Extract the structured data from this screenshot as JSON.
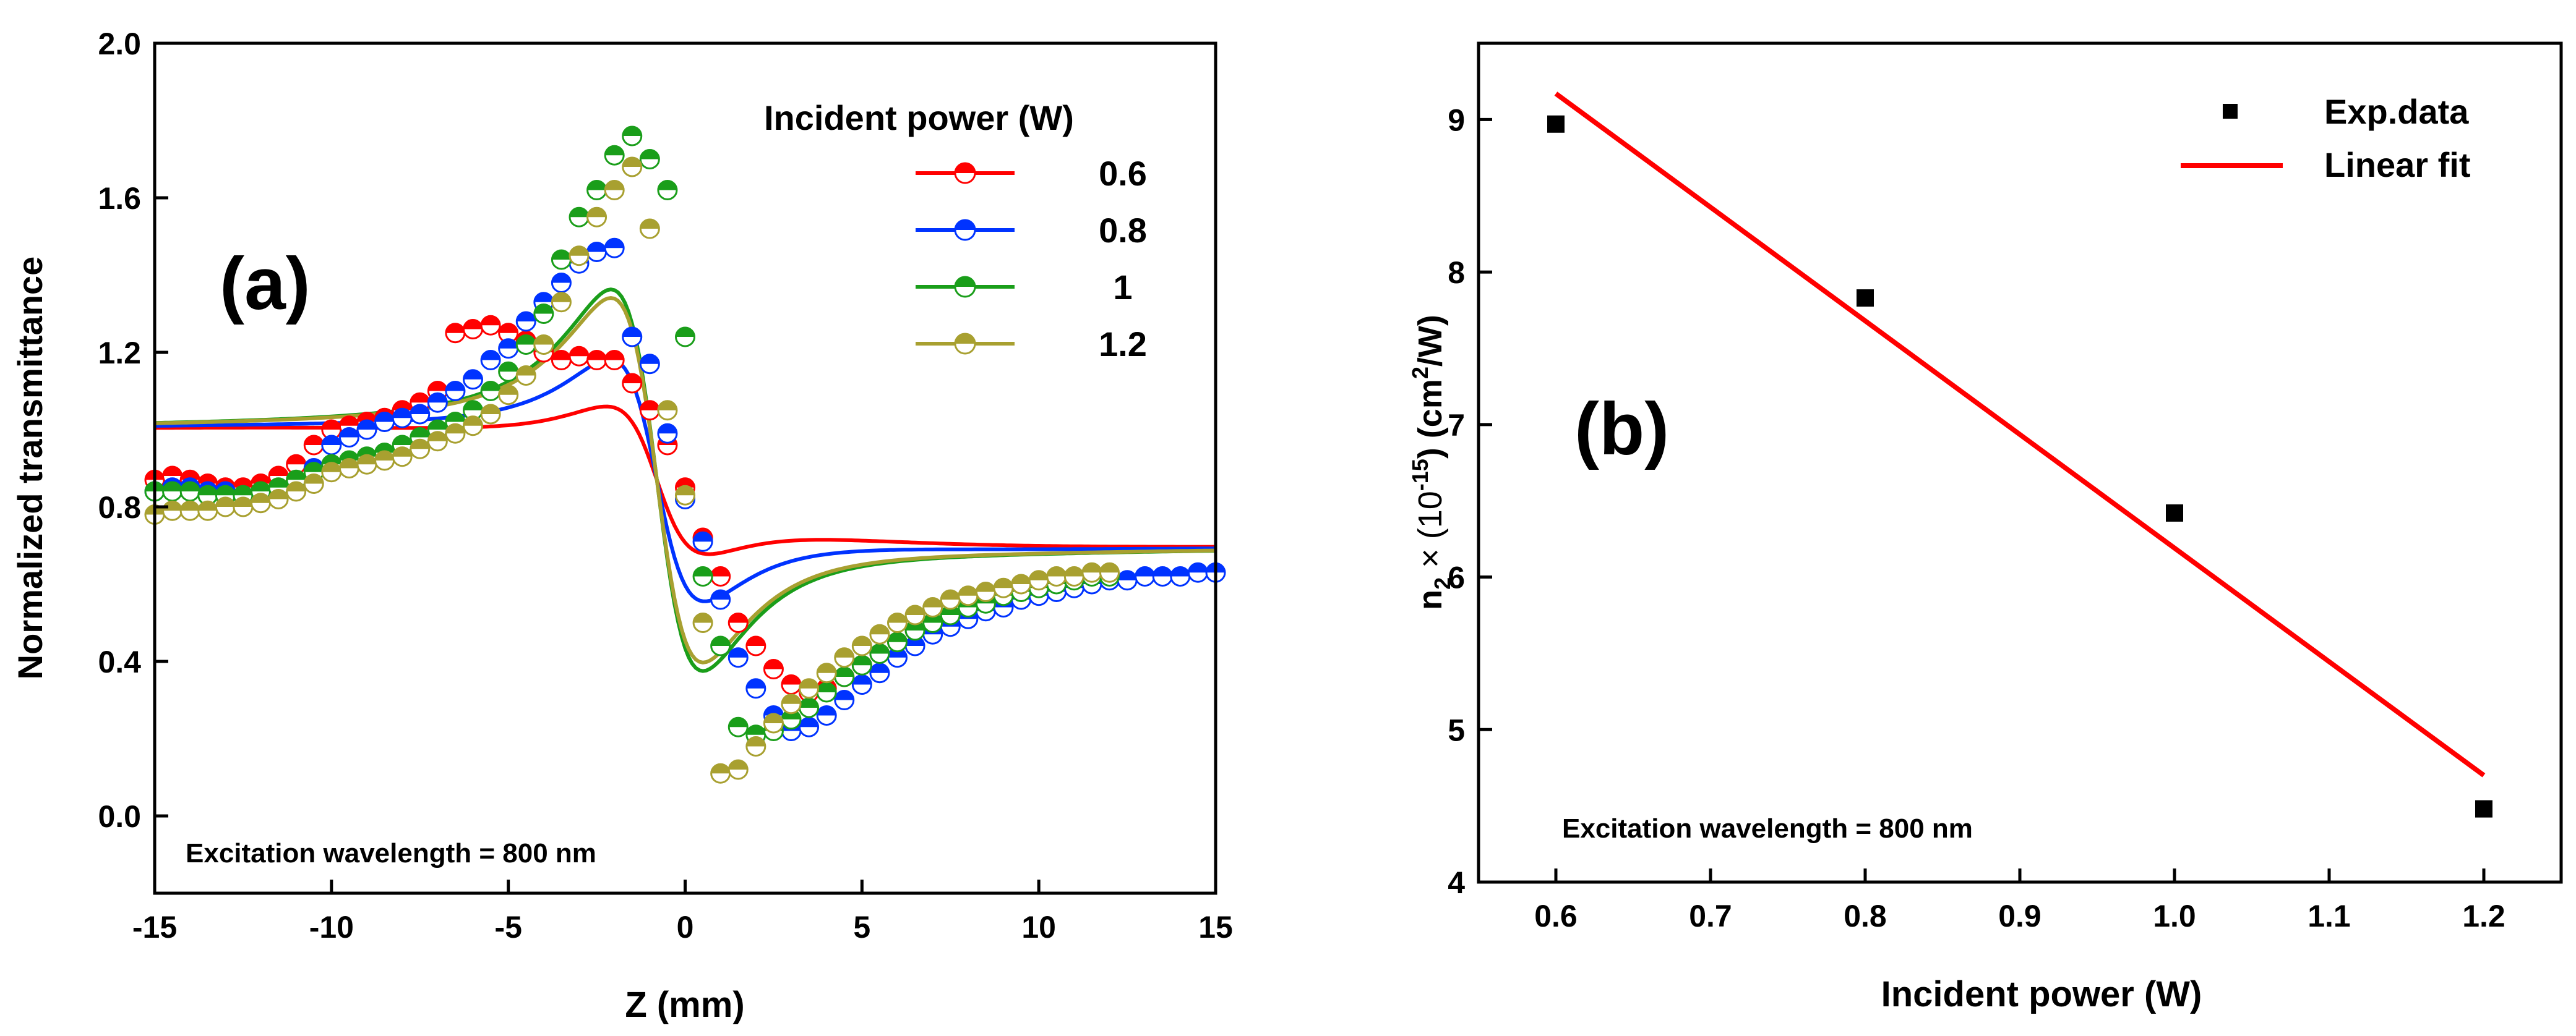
{
  "chart_data": [
    {
      "id": "a",
      "type": "scatter",
      "panel_label": "(a)",
      "xlabel": "Z (mm)",
      "ylabel": "Normalized transmittance",
      "xlim": [
        -15,
        15
      ],
      "ylim": [
        -0.2,
        2.0
      ],
      "xticks": [
        -15,
        -10,
        -5,
        0,
        5,
        10,
        15
      ],
      "xtick_labels": [
        "-15",
        "-10",
        "-5",
        "0",
        "5",
        "10",
        "15"
      ],
      "yticks": [
        0.0,
        0.4,
        0.8,
        1.2,
        1.6,
        2.0
      ],
      "ytick_labels": [
        "0.0",
        "0.4",
        "0.8",
        "1.2",
        "1.6",
        "2.0"
      ],
      "annotation": "Excitation wavelength = 800 nm",
      "legend_title": "Incident power (W)",
      "legend_position": "top-right",
      "series": [
        {
          "name": "0.6",
          "color": "#ff0000",
          "fit": {
            "peak_z": -2.8,
            "dv": 0.36,
            "base_left": 1.0,
            "end": 0.7
          },
          "points": [
            [
              -15,
              0.87
            ],
            [
              -14.5,
              0.88
            ],
            [
              -14,
              0.87
            ],
            [
              -13.5,
              0.86
            ],
            [
              -13,
              0.85
            ],
            [
              -12.5,
              0.85
            ],
            [
              -12,
              0.86
            ],
            [
              -11.5,
              0.88
            ],
            [
              -11,
              0.91
            ],
            [
              -10.5,
              0.96
            ],
            [
              -10,
              1.0
            ],
            [
              -9.5,
              1.01
            ],
            [
              -9,
              1.02
            ],
            [
              -8.5,
              1.03
            ],
            [
              -8,
              1.05
            ],
            [
              -7.5,
              1.07
            ],
            [
              -7,
              1.1
            ],
            [
              -6.5,
              1.25
            ],
            [
              -6,
              1.26
            ],
            [
              -5.5,
              1.27
            ],
            [
              -5,
              1.25
            ],
            [
              -4.5,
              1.23
            ],
            [
              -4,
              1.2
            ],
            [
              -3.5,
              1.18
            ],
            [
              -3,
              1.19
            ],
            [
              -2.5,
              1.18
            ],
            [
              -2,
              1.18
            ],
            [
              -1.5,
              1.12
            ],
            [
              -1,
              1.05
            ],
            [
              -0.5,
              0.96
            ],
            [
              0,
              0.85
            ],
            [
              0.5,
              0.72
            ],
            [
              1,
              0.62
            ],
            [
              1.5,
              0.5
            ],
            [
              2,
              0.44
            ],
            [
              2.5,
              0.38
            ],
            [
              3,
              0.34
            ],
            [
              3.5,
              0.32
            ],
            [
              4,
              0.33
            ],
            [
              4.5,
              0.36
            ],
            [
              5,
              0.39
            ],
            [
              5.5,
              0.42
            ],
            [
              6,
              0.45
            ],
            [
              6.5,
              0.48
            ],
            [
              7,
              0.5
            ],
            [
              7.5,
              0.52
            ],
            [
              8,
              0.53
            ],
            [
              8.5,
              0.54
            ],
            [
              9,
              0.56
            ],
            [
              9.5,
              0.57
            ],
            [
              10,
              0.58
            ],
            [
              10.5,
              0.59
            ],
            [
              11,
              0.6
            ],
            [
              11.5,
              0.61
            ],
            [
              12,
              0.62
            ]
          ]
        },
        {
          "name": "0.8",
          "color": "#0033ff",
          "fit": {
            "peak_z": -2.2,
            "dv": 0.64,
            "base_left": 1.0,
            "end": 0.7
          },
          "points": [
            [
              -15,
              0.84
            ],
            [
              -14.5,
              0.85
            ],
            [
              -14,
              0.85
            ],
            [
              -13.5,
              0.84
            ],
            [
              -13,
              0.84
            ],
            [
              -12.5,
              0.83
            ],
            [
              -12,
              0.83
            ],
            [
              -11.5,
              0.84
            ],
            [
              -11,
              0.86
            ],
            [
              -10.5,
              0.9
            ],
            [
              -10,
              0.96
            ],
            [
              -9.5,
              0.98
            ],
            [
              -9,
              1.0
            ],
            [
              -8.5,
              1.02
            ],
            [
              -8,
              1.03
            ],
            [
              -7.5,
              1.04
            ],
            [
              -7,
              1.07
            ],
            [
              -6.5,
              1.1
            ],
            [
              -6,
              1.13
            ],
            [
              -5.5,
              1.18
            ],
            [
              -5,
              1.21
            ],
            [
              -4.5,
              1.28
            ],
            [
              -4,
              1.33
            ],
            [
              -3.5,
              1.38
            ],
            [
              -3,
              1.43
            ],
            [
              -2.5,
              1.46
            ],
            [
              -2,
              1.47
            ],
            [
              -1.5,
              1.24
            ],
            [
              -1,
              1.17
            ],
            [
              -0.5,
              0.99
            ],
            [
              0,
              0.82
            ],
            [
              0.5,
              0.71
            ],
            [
              1,
              0.56
            ],
            [
              1.5,
              0.41
            ],
            [
              2,
              0.33
            ],
            [
              2.5,
              0.26
            ],
            [
              3,
              0.22
            ],
            [
              3.5,
              0.23
            ],
            [
              4,
              0.26
            ],
            [
              4.5,
              0.3
            ],
            [
              5,
              0.34
            ],
            [
              5.5,
              0.37
            ],
            [
              6,
              0.41
            ],
            [
              6.5,
              0.44
            ],
            [
              7,
              0.47
            ],
            [
              7.5,
              0.49
            ],
            [
              8,
              0.51
            ],
            [
              8.5,
              0.53
            ],
            [
              9,
              0.54
            ],
            [
              9.5,
              0.56
            ],
            [
              10,
              0.57
            ],
            [
              10.5,
              0.58
            ],
            [
              11,
              0.59
            ],
            [
              11.5,
              0.6
            ],
            [
              12,
              0.61
            ],
            [
              12.5,
              0.61
            ],
            [
              13,
              0.62
            ],
            [
              13.5,
              0.62
            ],
            [
              14,
              0.62
            ],
            [
              14.5,
              0.63
            ],
            [
              15,
              0.63
            ]
          ]
        },
        {
          "name": "1",
          "color": "#1a9e1a",
          "fit": {
            "peak_z": -1.5,
            "dv": 1.05,
            "base_left": 1.0,
            "end": 0.71
          },
          "points": [
            [
              -15,
              0.84
            ],
            [
              -14.5,
              0.84
            ],
            [
              -14,
              0.84
            ],
            [
              -13.5,
              0.83
            ],
            [
              -13,
              0.83
            ],
            [
              -12.5,
              0.83
            ],
            [
              -12,
              0.84
            ],
            [
              -11.5,
              0.85
            ],
            [
              -11,
              0.87
            ],
            [
              -10.5,
              0.89
            ],
            [
              -10,
              0.91
            ],
            [
              -9.5,
              0.92
            ],
            [
              -9,
              0.93
            ],
            [
              -8.5,
              0.94
            ],
            [
              -8,
              0.96
            ],
            [
              -7.5,
              0.98
            ],
            [
              -7,
              1.0
            ],
            [
              -6.5,
              1.02
            ],
            [
              -6,
              1.05
            ],
            [
              -5.5,
              1.1
            ],
            [
              -5,
              1.15
            ],
            [
              -4.5,
              1.22
            ],
            [
              -4,
              1.3
            ],
            [
              -3.5,
              1.44
            ],
            [
              -3,
              1.55
            ],
            [
              -2.5,
              1.62
            ],
            [
              -2,
              1.71
            ],
            [
              -1.5,
              1.76
            ],
            [
              -1,
              1.7
            ],
            [
              -0.5,
              1.62
            ],
            [
              0,
              1.24
            ],
            [
              0.5,
              0.62
            ],
            [
              1,
              0.44
            ],
            [
              1.5,
              0.23
            ],
            [
              2,
              0.21
            ],
            [
              2.5,
              0.22
            ],
            [
              3,
              0.25
            ],
            [
              3.5,
              0.28
            ],
            [
              4,
              0.32
            ],
            [
              4.5,
              0.36
            ],
            [
              5,
              0.39
            ],
            [
              5.5,
              0.42
            ],
            [
              6,
              0.45
            ],
            [
              6.5,
              0.48
            ],
            [
              7,
              0.5
            ],
            [
              7.5,
              0.52
            ],
            [
              8,
              0.54
            ],
            [
              8.5,
              0.55
            ],
            [
              9,
              0.57
            ],
            [
              9.5,
              0.58
            ],
            [
              10,
              0.59
            ],
            [
              10.5,
              0.6
            ],
            [
              11,
              0.61
            ],
            [
              11.5,
              0.62
            ],
            [
              12,
              0.62
            ]
          ]
        },
        {
          "name": "1.2",
          "color": "#a8a030",
          "fit": {
            "peak_z": -1.3,
            "dv": 1.0,
            "base_left": 1.0,
            "end": 0.71
          },
          "points": [
            [
              -15,
              0.78
            ],
            [
              -14.5,
              0.79
            ],
            [
              -14,
              0.79
            ],
            [
              -13.5,
              0.79
            ],
            [
              -13,
              0.8
            ],
            [
              -12.5,
              0.8
            ],
            [
              -12,
              0.81
            ],
            [
              -11.5,
              0.82
            ],
            [
              -11,
              0.84
            ],
            [
              -10.5,
              0.86
            ],
            [
              -10,
              0.89
            ],
            [
              -9.5,
              0.9
            ],
            [
              -9,
              0.91
            ],
            [
              -8.5,
              0.92
            ],
            [
              -8,
              0.93
            ],
            [
              -7.5,
              0.95
            ],
            [
              -7,
              0.97
            ],
            [
              -6.5,
              0.99
            ],
            [
              -6,
              1.01
            ],
            [
              -5.5,
              1.04
            ],
            [
              -5,
              1.09
            ],
            [
              -4.5,
              1.14
            ],
            [
              -4,
              1.22
            ],
            [
              -3.5,
              1.33
            ],
            [
              -3,
              1.45
            ],
            [
              -2.5,
              1.55
            ],
            [
              -2,
              1.62
            ],
            [
              -1.5,
              1.68
            ],
            [
              -1,
              1.52
            ],
            [
              -0.5,
              1.05
            ],
            [
              0,
              0.83
            ],
            [
              0.5,
              0.5
            ],
            [
              1,
              0.11
            ],
            [
              1.5,
              0.12
            ],
            [
              2,
              0.18
            ],
            [
              2.5,
              0.24
            ],
            [
              3,
              0.29
            ],
            [
              3.5,
              0.33
            ],
            [
              4,
              0.37
            ],
            [
              4.5,
              0.41
            ],
            [
              5,
              0.44
            ],
            [
              5.5,
              0.47
            ],
            [
              6,
              0.5
            ],
            [
              6.5,
              0.52
            ],
            [
              7,
              0.54
            ],
            [
              7.5,
              0.56
            ],
            [
              8,
              0.57
            ],
            [
              8.5,
              0.58
            ],
            [
              9,
              0.59
            ],
            [
              9.5,
              0.6
            ],
            [
              10,
              0.61
            ],
            [
              10.5,
              0.62
            ],
            [
              11,
              0.62
            ],
            [
              11.5,
              0.63
            ],
            [
              12,
              0.63
            ]
          ]
        }
      ]
    },
    {
      "id": "b",
      "type": "scatter",
      "panel_label": "(b)",
      "xlabel": "Incident power (W)",
      "ylabel_main": "n",
      "ylabel_sub": "2",
      "ylabel_mid": " × (10",
      "ylabel_exp": "-15",
      "ylabel_mid2": ") (cm",
      "ylabel_exp2": "2",
      "ylabel_end": "/W)",
      "xlim": [
        0.55,
        1.25
      ],
      "ylim": [
        4,
        9.5
      ],
      "xticks": [
        0.6,
        0.7,
        0.8,
        0.9,
        1.0,
        1.1,
        1.2
      ],
      "xtick_labels": [
        "0.6",
        "0.7",
        "0.8",
        "0.9",
        "1.0",
        "1.1",
        "1.2"
      ],
      "yticks": [
        4,
        5,
        6,
        7,
        8,
        9
      ],
      "ytick_labels": [
        "4",
        "5",
        "6",
        "7",
        "8",
        "9"
      ],
      "annotation": "Excitation wavelength = 800 nm",
      "legend_position": "top-right",
      "series": [
        {
          "name": "Exp.data",
          "kind": "scatter",
          "color": "#000000",
          "x": [
            0.6,
            0.8,
            1.0,
            1.2
          ],
          "y": [
            8.97,
            7.83,
            6.42,
            4.48
          ]
        },
        {
          "name": "Linear fit",
          "kind": "line",
          "color": "#ff0000",
          "x": [
            0.6,
            1.2
          ],
          "y": [
            9.17,
            4.7
          ]
        }
      ]
    }
  ]
}
